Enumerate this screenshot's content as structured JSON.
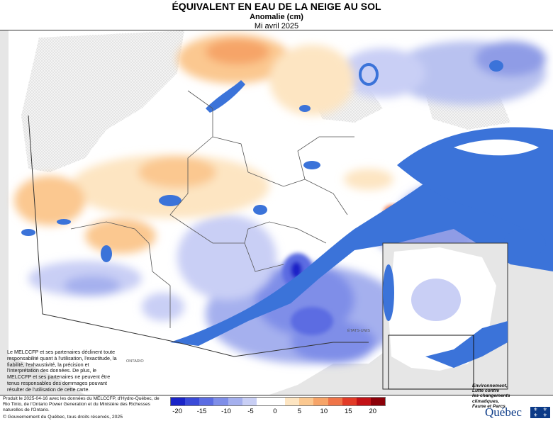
{
  "header": {
    "title": "ÉQUIVALENT EN EAU DE LA NEIGE AU SOL",
    "subtitle": "Anomalie (cm)",
    "period": "Mi avril 2025"
  },
  "map": {
    "place_labels": [
      "ONTARIO",
      "ÉTATS-UNIS"
    ],
    "colors": {
      "water": "#3b73d9",
      "land": "#ffffff",
      "outside": "#e6e6e6",
      "no_data_hatch": "#cfcfcf",
      "boundary": "#555555"
    }
  },
  "disclaimer": "Le MELCCFP et ses partenaires déclinent toute responsabilité quant à l'utilisation, l'exactitude, la fiabilité, l'exhaustivité, la précision et l'interprétation des données. De plus, le MELCCFP et ses partenaires ne peuvent être tenus responsables des dommages pouvant résulter de l'utilisation de cette carte.",
  "footer": {
    "source_note": "Produit le 2025-04-16 avec les données du MELCCFP, d'Hydro-Québec, de Rio Tinto, de l'Ontario Power Generation et du Ministère des Richesses naturelles de l'Ontario.",
    "copyright": "© Gouvernement du Québec, tous droits réservés, 2025"
  },
  "legend": {
    "colors": [
      "#1a24c8",
      "#3a4ad8",
      "#5b6ce2",
      "#7f8ee8",
      "#a5b0ee",
      "#c9cff5",
      "#ffffff",
      "#ffffff",
      "#fde5c2",
      "#fbc890",
      "#f6a468",
      "#ef7448",
      "#e23b27",
      "#c31216",
      "#8c0008"
    ],
    "ticks": [
      "-20",
      "-15",
      "-10",
      "-5",
      "0",
      "5",
      "10",
      "15",
      "20"
    ]
  },
  "logo": {
    "ministry": [
      "Environnement,",
      "Lutte contre",
      "les changements",
      "climatiques,",
      "Faune et Parcs"
    ],
    "wordmark": "Québec",
    "flag_glyph": "⚜"
  }
}
